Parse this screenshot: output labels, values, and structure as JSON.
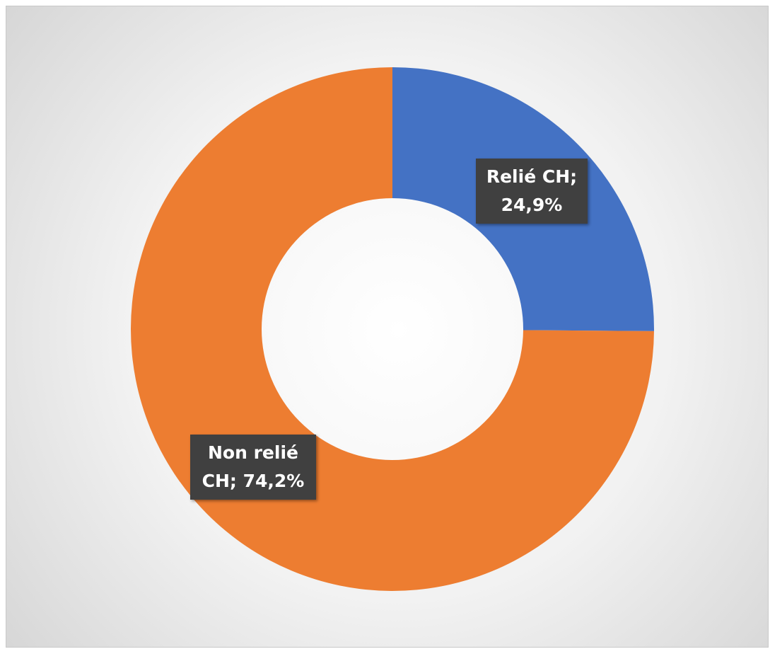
{
  "chart_data": {
    "type": "donut",
    "values": [
      24.9,
      74.2
    ],
    "value_labels": [
      "Relié CH; 24,9%",
      "Non relié CH; 74,2%"
    ],
    "colors": [
      "#4472c4",
      "#ed7d31"
    ]
  }
}
